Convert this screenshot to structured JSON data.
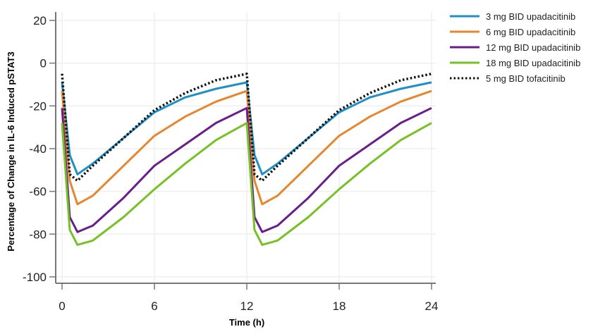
{
  "chart_data": {
    "type": "line",
    "title": "",
    "xlabel": "Time (h)",
    "ylabel": "Percentage of Change in IL-6 Induced pSTAT3",
    "xlim": [
      -0.4,
      24.3
    ],
    "ylim": [
      -104,
      24
    ],
    "xticks": [
      0,
      6,
      12,
      18,
      24
    ],
    "yticks": [
      20,
      0,
      -20,
      -40,
      -60,
      -80,
      -100
    ],
    "grid": true,
    "legend_position": "right",
    "x": [
      0,
      0.5,
      1,
      2,
      4,
      6,
      8,
      10,
      12,
      12.5,
      13,
      14,
      16,
      18,
      20,
      22,
      24
    ],
    "series": [
      {
        "name": "3 mg BID upadacitinib",
        "color": "#1f8fc8",
        "dash": false,
        "values": [
          -9,
          -43,
          -52,
          -47,
          -35,
          -23,
          -16,
          -12,
          -9,
          -43,
          -52,
          -47,
          -35,
          -23,
          -16,
          -12,
          -9
        ]
      },
      {
        "name": "6 mg BID upadacitinib",
        "color": "#e8862e",
        "dash": false,
        "values": [
          -13,
          -55,
          -66,
          -62,
          -48,
          -34,
          -25,
          -18,
          -13,
          -55,
          -66,
          -62,
          -48,
          -34,
          -25,
          -18,
          -13
        ]
      },
      {
        "name": "12 mg BID upadacitinib",
        "color": "#6a1e8c",
        "dash": false,
        "values": [
          -21,
          -72,
          -79,
          -76,
          -63,
          -48,
          -38,
          -28,
          -21,
          -72,
          -79,
          -76,
          -63,
          -48,
          -38,
          -28,
          -21
        ]
      },
      {
        "name": "18 mg BID upadacitinib",
        "color": "#76c225",
        "dash": false,
        "values": [
          -28,
          -78,
          -85,
          -83,
          -72,
          -59,
          -47,
          -36,
          -28,
          -78,
          -85,
          -83,
          -72,
          -59,
          -47,
          -36,
          -28
        ]
      },
      {
        "name": "5 mg BID tofacitinib",
        "color": "#111111",
        "dash": true,
        "values": [
          -5,
          -52,
          -55,
          -48,
          -35,
          -22,
          -14,
          -8,
          -5,
          -52,
          -55,
          -48,
          -35,
          -22,
          -14,
          -8,
          -5
        ]
      }
    ]
  }
}
